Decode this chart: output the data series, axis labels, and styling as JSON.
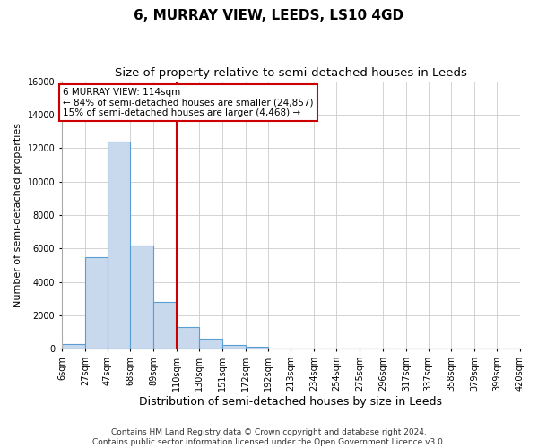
{
  "title": "6, MURRAY VIEW, LEEDS, LS10 4GD",
  "subtitle": "Size of property relative to semi-detached houses in Leeds",
  "xlabel": "Distribution of semi-detached houses by size in Leeds",
  "ylabel": "Number of semi-detached properties",
  "footer": "Contains HM Land Registry data © Crown copyright and database right 2024.\nContains public sector information licensed under the Open Government Licence v3.0.",
  "bins": [
    6,
    27,
    47,
    68,
    89,
    110,
    130,
    151,
    172,
    192,
    213,
    234,
    254,
    275,
    296,
    317,
    337,
    358,
    379,
    399,
    420
  ],
  "bin_labels": [
    "6sqm",
    "27sqm",
    "47sqm",
    "68sqm",
    "89sqm",
    "110sqm",
    "130sqm",
    "151sqm",
    "172sqm",
    "192sqm",
    "213sqm",
    "234sqm",
    "254sqm",
    "275sqm",
    "296sqm",
    "317sqm",
    "337sqm",
    "358sqm",
    "379sqm",
    "399sqm",
    "420sqm"
  ],
  "values": [
    300,
    5500,
    12400,
    6200,
    2800,
    1300,
    600,
    250,
    150,
    0,
    0,
    0,
    0,
    0,
    0,
    0,
    0,
    0,
    0,
    0
  ],
  "bar_color": "#c8d9ee",
  "bar_edge_color": "#5a9fd4",
  "vline_x": 110,
  "vline_color": "#cc0000",
  "annotation_text": "6 MURRAY VIEW: 114sqm\n← 84% of semi-detached houses are smaller (24,857)\n15% of semi-detached houses are larger (4,468) →",
  "annotation_box_color": "#ffffff",
  "annotation_box_edge": "#cc0000",
  "ylim": [
    0,
    16000
  ],
  "yticks": [
    0,
    2000,
    4000,
    6000,
    8000,
    10000,
    12000,
    14000,
    16000
  ],
  "bg_color": "#ffffff",
  "plot_bg_color": "#ffffff",
  "grid_color": "#cccccc",
  "title_fontsize": 11,
  "subtitle_fontsize": 9.5,
  "xlabel_fontsize": 9,
  "ylabel_fontsize": 8,
  "tick_fontsize": 7,
  "annotation_fontsize": 7.5,
  "footer_fontsize": 6.5
}
